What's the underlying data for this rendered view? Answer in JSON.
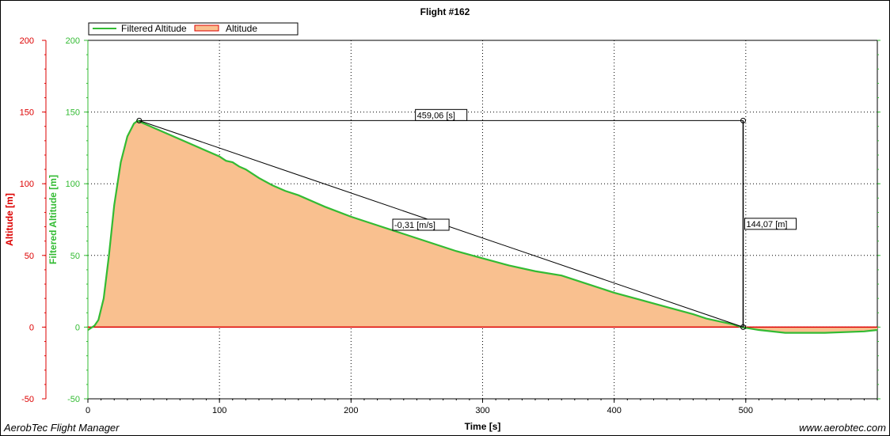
{
  "footer": {
    "app_name": "AerobTec Flight Manager",
    "website": "www.aerobtec.com"
  },
  "colors": {
    "filtered_line": "#33bb33",
    "altitude_line": "#dd0000",
    "altitude_fill": "#f9c08f",
    "left_axis": "#dd0000",
    "green_axis": "#33bb33",
    "measure": "#000000"
  },
  "chart_data": {
    "type": "area",
    "title": "Flight #162",
    "xlabel": "Time [s]",
    "ylabel_left": "Altitude [m]",
    "ylabel_right": "Filtered Altitude [m]",
    "xlim": [
      0,
      600
    ],
    "ylim": [
      -50,
      200
    ],
    "x_ticks": [
      "0",
      "100",
      "200",
      "300",
      "400",
      "500"
    ],
    "y_ticks": [
      "-50",
      "0",
      "50",
      "100",
      "150",
      "200"
    ],
    "grid": true,
    "legend": {
      "placement": "top-left",
      "entries": [
        "Filtered Altitude",
        "Altitude"
      ]
    },
    "series": [
      {
        "name": "Filtered Altitude",
        "x": [
          0,
          5,
          8,
          12,
          16,
          20,
          25,
          30,
          35,
          38,
          40,
          50,
          60,
          80,
          100,
          105,
          110,
          115,
          120,
          130,
          140,
          150,
          160,
          180,
          200,
          220,
          230,
          240,
          260,
          280,
          300,
          320,
          340,
          360,
          380,
          400,
          420,
          440,
          460,
          470,
          480,
          490,
          497,
          510,
          530,
          560,
          590,
          600
        ],
        "y": [
          -2,
          1,
          5,
          20,
          50,
          85,
          115,
          133,
          142,
          144,
          143,
          139,
          135,
          127,
          119,
          116,
          115,
          112,
          110,
          104,
          99,
          95,
          92,
          84,
          77,
          71,
          68,
          65,
          59,
          53,
          48,
          43,
          39,
          36,
          30,
          24,
          19,
          14,
          9,
          6,
          4,
          2,
          0,
          -2,
          -4,
          -4,
          -3,
          -2
        ]
      },
      {
        "name": "Altitude",
        "x": [
          0,
          5,
          8,
          12,
          16,
          20,
          25,
          30,
          35,
          38,
          40,
          50,
          60,
          80,
          100,
          105,
          110,
          115,
          120,
          130,
          140,
          150,
          160,
          180,
          200,
          220,
          230,
          240,
          260,
          280,
          300,
          320,
          340,
          360,
          380,
          400,
          420,
          440,
          460,
          470,
          480,
          490,
          497,
          510,
          530,
          560,
          590,
          600
        ],
        "y": [
          -2,
          1,
          5,
          20,
          50,
          85,
          115,
          133,
          142,
          144,
          143,
          139,
          135,
          127,
          119,
          116,
          115,
          112,
          110,
          104,
          99,
          95,
          92,
          84,
          77,
          71,
          68,
          65,
          59,
          53,
          48,
          43,
          39,
          36,
          30,
          24,
          19,
          14,
          9,
          6,
          4,
          2,
          0,
          -2,
          -4,
          -4,
          -3,
          -2
        ]
      }
    ],
    "measurement": {
      "start": [
        39,
        144.07
      ],
      "end": [
        498,
        0
      ],
      "duration_label": "459,06 [s]",
      "height_label": "144,07 [m]",
      "slope_label": "-0,31 [m/s]"
    }
  }
}
